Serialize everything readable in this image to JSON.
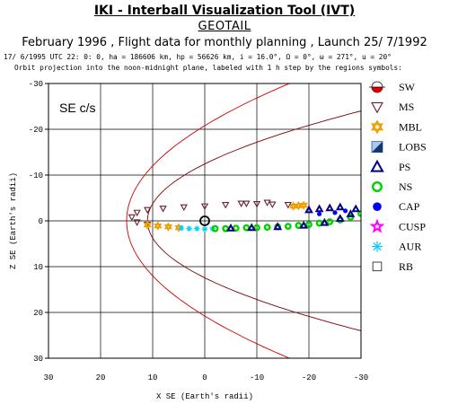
{
  "header": {
    "tool_title": "IKI - Interball Visualization Tool (IVT)",
    "spacecraft": "GEOTAIL",
    "subtitle": "February 1996 ,  Flight data for monthly planning ,   Launch 25/ 7/1992",
    "orbit_info": "17/ 6/1995 UTC 22: 0: 0, ha = 186606 km, hp =  56626 km, i = 16.0°, Ω =   0°, ω = 271°, u =  20°",
    "projection_note": "Orbit projection into the noon-midnight plane, labeled with 1 h step by the regions symbols:"
  },
  "chart_data": {
    "type": "scatter",
    "panel_label": "SE c/s",
    "xlabel": "X SE (Earth's radii)",
    "ylabel": "Z SE (Earth's radii)",
    "xlim": [
      30,
      -30
    ],
    "ylim": [
      -30,
      30
    ],
    "x_ticks": [
      "30",
      "20",
      "10",
      "0",
      "-10",
      "-20",
      "-30"
    ],
    "y_ticks": [
      "30",
      "20",
      "10",
      "0",
      "-10",
      "-20",
      "-30"
    ],
    "grid": true,
    "legend_placement": "right",
    "legend": [
      {
        "key": "SW",
        "label": "SW",
        "symbol": "half-circle",
        "color": "#e00000"
      },
      {
        "key": "MS",
        "label": "MS",
        "symbol": "triangle-down",
        "color": "#6a2030"
      },
      {
        "key": "MBL",
        "label": "MBL",
        "symbol": "star-of-david",
        "color": "#f0a000"
      },
      {
        "key": "LOBS",
        "label": "LOBS",
        "symbol": "split-square",
        "color": "#2060c0"
      },
      {
        "key": "PS",
        "label": "PS",
        "symbol": "triangle-up",
        "color": "#000080"
      },
      {
        "key": "NS",
        "label": "NS",
        "symbol": "circle-open",
        "color": "#00d000"
      },
      {
        "key": "CAP",
        "label": "CAP",
        "symbol": "circle-filled",
        "color": "#0000ff"
      },
      {
        "key": "CUSP",
        "label": "CUSP",
        "symbol": "star-open",
        "color": "#ff00ff"
      },
      {
        "key": "AUR",
        "label": "AUR",
        "symbol": "asterisk",
        "color": "#00d0ff"
      },
      {
        "key": "RB",
        "label": "RB",
        "symbol": "square-open",
        "color": "#404040"
      }
    ],
    "boundaries": [
      {
        "name": "bow-shock",
        "color": "#cc0000",
        "standoff": 15,
        "x_tail": -30,
        "z_tail": 36
      },
      {
        "name": "magnetopause",
        "color": "#800000",
        "standoff": 11,
        "x_tail": -30,
        "z_tail": 24
      }
    ],
    "earth": {
      "x": 0,
      "z": 0
    },
    "orbit_segments": [
      {
        "region": "MS",
        "x": [
          -12,
          -8,
          -4,
          0,
          4,
          8,
          11,
          13,
          14,
          13,
          11
        ],
        "z": [
          -4,
          -3.8,
          -3.5,
          -3.2,
          -3,
          -2.7,
          -2.4,
          -1.8,
          -0.8,
          0.3,
          0.8
        ]
      },
      {
        "region": "MBL",
        "x": [
          11,
          9,
          7,
          5
        ],
        "z": [
          0.9,
          1.1,
          1.3,
          1.5
        ]
      },
      {
        "region": "AUR",
        "x": [
          4.5,
          3,
          1.5,
          0,
          -1.5
        ],
        "z": [
          1.6,
          1.7,
          1.7,
          1.8,
          1.7
        ]
      },
      {
        "region": "NS",
        "x": [
          -2,
          -4,
          -6,
          -8,
          -10,
          -12,
          -14,
          -16,
          -18,
          -20,
          -22,
          -24,
          -26,
          -28,
          -30,
          -31
        ],
        "z": [
          1.7,
          1.7,
          1.6,
          1.5,
          1.5,
          1.4,
          1.3,
          1.2,
          1.0,
          0.8,
          0.5,
          0.2,
          -0.2,
          -0.8,
          -1.6,
          -2.4
        ]
      },
      {
        "region": "PS",
        "x": [
          -5,
          -9,
          -14,
          -19,
          -23,
          -26,
          -28,
          -29
        ],
        "z": [
          1.6,
          1.5,
          1.3,
          1.0,
          0.4,
          -0.5,
          -1.5,
          -2.6
        ]
      },
      {
        "region": "PS",
        "x": [
          -20,
          -22,
          -24,
          -26
        ],
        "z": [
          -2.4,
          -2.6,
          -2.8,
          -3.0
        ]
      },
      {
        "region": "CAP",
        "x": [
          -22,
          -25,
          -27
        ],
        "z": [
          -1.5,
          -1.8,
          -2.2
        ]
      },
      {
        "region": "MBL",
        "x": [
          -17,
          -18,
          -19
        ],
        "z": [
          -3.2,
          -3.3,
          -3.4
        ]
      },
      {
        "region": "MS",
        "x": [
          -16,
          -13,
          -10,
          -7
        ],
        "z": [
          -3.5,
          -3.6,
          -3.7,
          -3.8
        ]
      }
    ]
  }
}
